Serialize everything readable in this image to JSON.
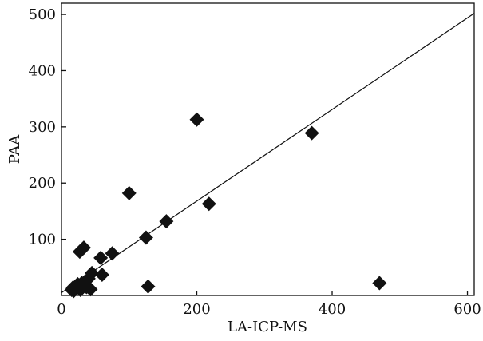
{
  "chart_data": {
    "type": "scatter",
    "title": "",
    "xlabel": "LA-ICP-MS",
    "ylabel": "PAA",
    "xlim": [
      0,
      610
    ],
    "ylim": [
      0,
      520
    ],
    "xticks": [
      0,
      200,
      400,
      600
    ],
    "yticks": [
      100,
      200,
      300,
      400,
      500
    ],
    "x_tick_labels": [
      "0",
      "200",
      "400",
      "600"
    ],
    "y_tick_labels": [
      "100",
      "200",
      "300",
      "400",
      "500"
    ],
    "grid": false,
    "legend": "none",
    "marker": "diamond",
    "series": [
      {
        "points": [
          {
            "x": 15,
            "y": 10
          },
          {
            "x": 17,
            "y": 14
          },
          {
            "x": 18,
            "y": 8
          },
          {
            "x": 20,
            "y": 12
          },
          {
            "x": 22,
            "y": 16
          },
          {
            "x": 24,
            "y": 20
          },
          {
            "x": 27,
            "y": 78
          },
          {
            "x": 28,
            "y": 10
          },
          {
            "x": 30,
            "y": 22
          },
          {
            "x": 33,
            "y": 85
          },
          {
            "x": 35,
            "y": 25
          },
          {
            "x": 37,
            "y": 15
          },
          {
            "x": 40,
            "y": 30
          },
          {
            "x": 43,
            "y": 11
          },
          {
            "x": 45,
            "y": 40
          },
          {
            "x": 58,
            "y": 67
          },
          {
            "x": 60,
            "y": 37
          },
          {
            "x": 75,
            "y": 75
          },
          {
            "x": 100,
            "y": 182
          },
          {
            "x": 125,
            "y": 103
          },
          {
            "x": 128,
            "y": 16
          },
          {
            "x": 155,
            "y": 132
          },
          {
            "x": 200,
            "y": 313
          },
          {
            "x": 218,
            "y": 163
          },
          {
            "x": 370,
            "y": 289
          },
          {
            "x": 470,
            "y": 22
          }
        ]
      }
    ],
    "fit_line": {
      "x": [
        0,
        610
      ],
      "y": [
        5,
        502
      ]
    },
    "colors": {
      "marker": "#111111",
      "line": "#111111",
      "axis": "#111111"
    }
  }
}
